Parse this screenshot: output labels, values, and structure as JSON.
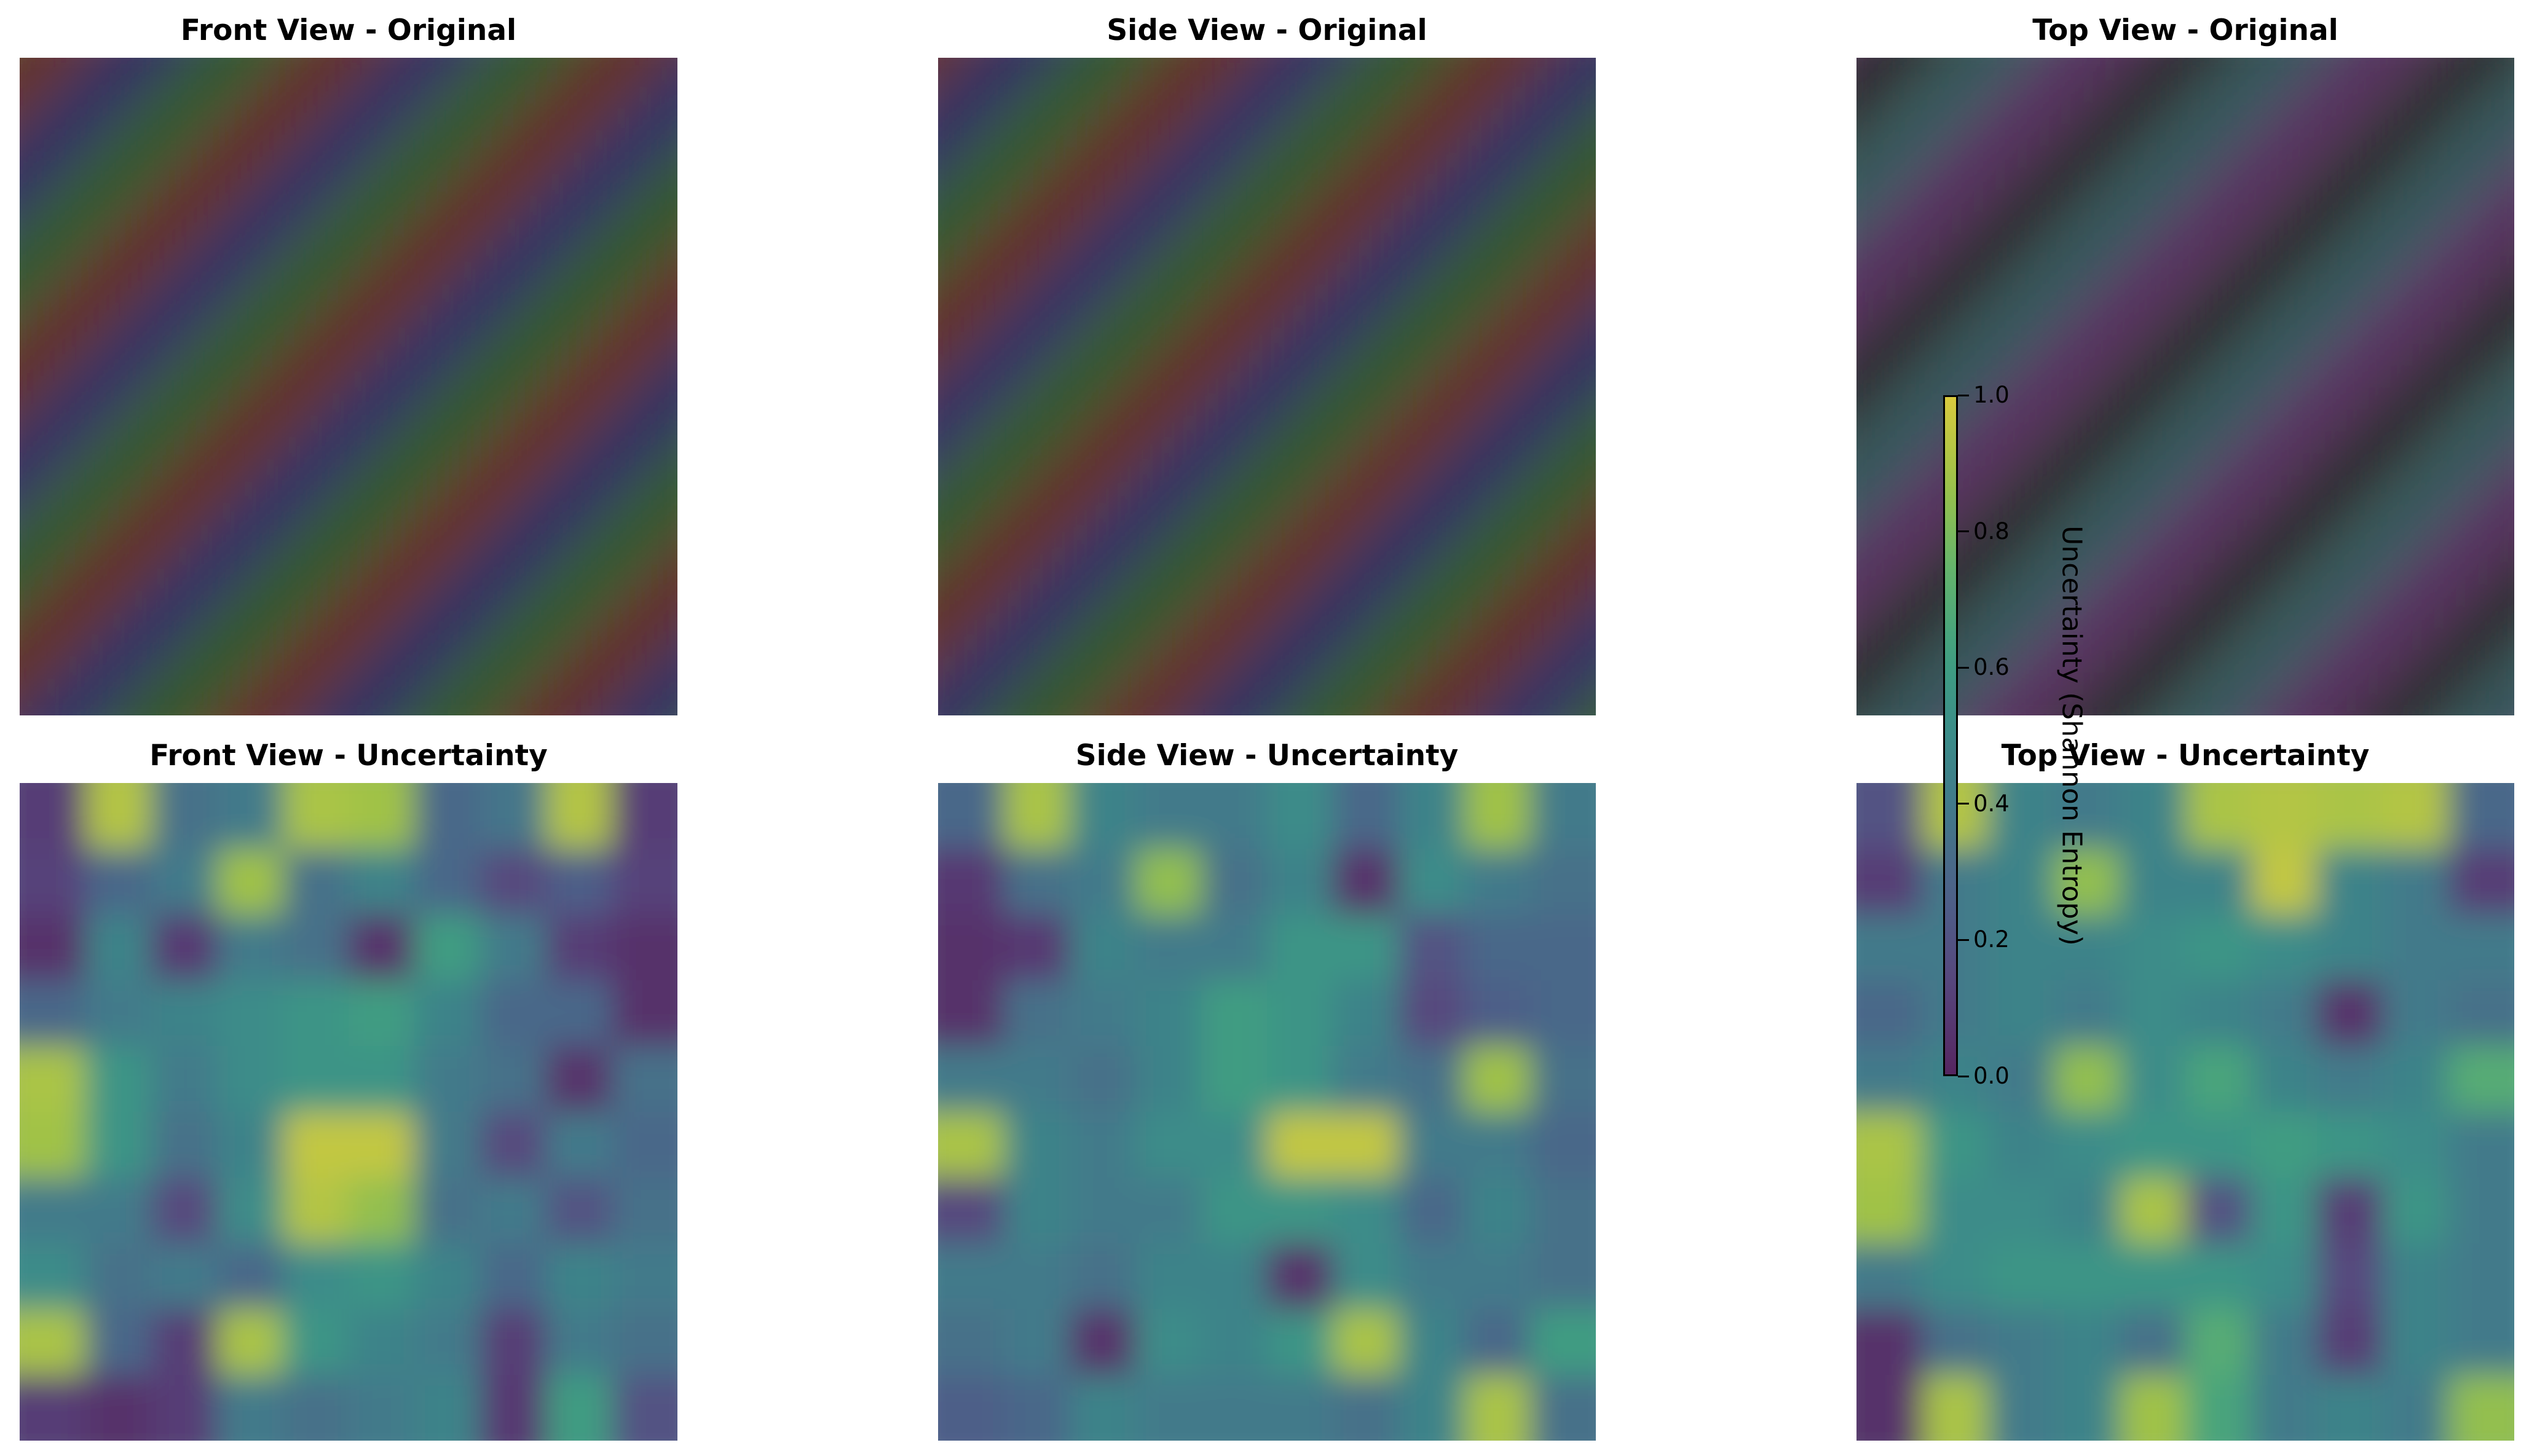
{
  "chart_data": [
    {
      "type": "heatmap",
      "title": "Front View - Original",
      "mode": "rgb",
      "pattern": {
        "kx": 0.9,
        "ky": 0.9,
        "phase": 0.0,
        "channels": [
          "red",
          "blue",
          "green"
        ]
      },
      "grid": false
    },
    {
      "type": "heatmap",
      "title": "Side View - Original",
      "mode": "rgb",
      "pattern": {
        "kx": 0.9,
        "ky": 0.9,
        "phase": 0.9,
        "channels": [
          "red",
          "blue",
          "green"
        ]
      },
      "grid": false
    },
    {
      "type": "heatmap",
      "title": "Top View - Original",
      "mode": "rgb",
      "pattern": {
        "kx": 0.9,
        "ky": 0.9,
        "phase": 1.8,
        "channels": [
          "purple",
          "black",
          "teal"
        ]
      },
      "grid": false
    },
    {
      "type": "heatmap",
      "title": "Front View - Uncertainty",
      "mode": "colormap",
      "colormap": "viridis",
      "range": [
        0.0,
        1.0
      ],
      "grid_size": 10,
      "values": [
        [
          0.1,
          0.92,
          0.35,
          0.4,
          0.9,
          0.88,
          0.3,
          0.38,
          0.92,
          0.1
        ],
        [
          0.12,
          0.3,
          0.4,
          0.88,
          0.35,
          0.45,
          0.3,
          0.15,
          0.25,
          0.12
        ],
        [
          0.05,
          0.45,
          0.08,
          0.4,
          0.35,
          0.05,
          0.6,
          0.4,
          0.1,
          0.05
        ],
        [
          0.3,
          0.4,
          0.45,
          0.5,
          0.55,
          0.6,
          0.45,
          0.3,
          0.3,
          0.05
        ],
        [
          0.9,
          0.55,
          0.4,
          0.5,
          0.55,
          0.55,
          0.4,
          0.35,
          0.05,
          0.35
        ],
        [
          0.88,
          0.55,
          0.35,
          0.45,
          0.95,
          0.95,
          0.4,
          0.15,
          0.4,
          0.3
        ],
        [
          0.4,
          0.4,
          0.15,
          0.5,
          0.92,
          0.85,
          0.35,
          0.4,
          0.2,
          0.35
        ],
        [
          0.5,
          0.35,
          0.4,
          0.3,
          0.5,
          0.55,
          0.45,
          0.3,
          0.45,
          0.4
        ],
        [
          0.9,
          0.3,
          0.1,
          0.9,
          0.55,
          0.45,
          0.4,
          0.1,
          0.4,
          0.35
        ],
        [
          0.1,
          0.05,
          0.1,
          0.4,
          0.35,
          0.4,
          0.45,
          0.08,
          0.6,
          0.2
        ]
      ]
    },
    {
      "type": "heatmap",
      "title": "Side View - Uncertainty",
      "mode": "colormap",
      "colormap": "viridis",
      "range": [
        0.0,
        1.0
      ],
      "grid_size": 10,
      "values": [
        [
          0.3,
          0.9,
          0.45,
          0.4,
          0.4,
          0.5,
          0.3,
          0.45,
          0.88,
          0.4
        ],
        [
          0.08,
          0.35,
          0.4,
          0.85,
          0.35,
          0.45,
          0.05,
          0.5,
          0.4,
          0.35
        ],
        [
          0.05,
          0.08,
          0.45,
          0.4,
          0.4,
          0.55,
          0.55,
          0.2,
          0.3,
          0.3
        ],
        [
          0.05,
          0.35,
          0.4,
          0.45,
          0.6,
          0.55,
          0.45,
          0.15,
          0.25,
          0.3
        ],
        [
          0.4,
          0.4,
          0.35,
          0.45,
          0.6,
          0.55,
          0.4,
          0.35,
          0.88,
          0.35
        ],
        [
          0.9,
          0.45,
          0.4,
          0.5,
          0.5,
          0.95,
          0.95,
          0.4,
          0.4,
          0.3
        ],
        [
          0.15,
          0.45,
          0.4,
          0.4,
          0.55,
          0.55,
          0.5,
          0.3,
          0.45,
          0.35
        ],
        [
          0.4,
          0.4,
          0.35,
          0.45,
          0.45,
          0.05,
          0.5,
          0.4,
          0.4,
          0.35
        ],
        [
          0.35,
          0.4,
          0.05,
          0.5,
          0.45,
          0.55,
          0.9,
          0.45,
          0.3,
          0.6
        ],
        [
          0.25,
          0.3,
          0.45,
          0.4,
          0.4,
          0.4,
          0.35,
          0.45,
          0.9,
          0.35
        ]
      ]
    },
    {
      "type": "heatmap",
      "title": "Top View - Uncertainty",
      "mode": "colormap",
      "colormap": "viridis",
      "range": [
        0.0,
        1.0
      ],
      "grid_size": 10,
      "values": [
        [
          0.2,
          0.92,
          0.45,
          0.4,
          0.45,
          0.9,
          0.92,
          0.9,
          0.92,
          0.3
        ],
        [
          0.1,
          0.4,
          0.45,
          0.85,
          0.45,
          0.45,
          0.95,
          0.45,
          0.4,
          0.1
        ],
        [
          0.4,
          0.4,
          0.45,
          0.45,
          0.5,
          0.55,
          0.5,
          0.45,
          0.4,
          0.4
        ],
        [
          0.3,
          0.4,
          0.45,
          0.4,
          0.5,
          0.45,
          0.4,
          0.05,
          0.4,
          0.35
        ],
        [
          0.4,
          0.45,
          0.4,
          0.85,
          0.5,
          0.65,
          0.45,
          0.4,
          0.45,
          0.7
        ],
        [
          0.9,
          0.55,
          0.45,
          0.5,
          0.55,
          0.55,
          0.6,
          0.55,
          0.5,
          0.4
        ],
        [
          0.88,
          0.5,
          0.5,
          0.45,
          0.9,
          0.2,
          0.55,
          0.1,
          0.55,
          0.4
        ],
        [
          0.4,
          0.5,
          0.55,
          0.55,
          0.55,
          0.55,
          0.5,
          0.15,
          0.45,
          0.4
        ],
        [
          0.05,
          0.35,
          0.4,
          0.45,
          0.35,
          0.7,
          0.4,
          0.1,
          0.45,
          0.4
        ],
        [
          0.05,
          0.9,
          0.4,
          0.45,
          0.88,
          0.65,
          0.4,
          0.45,
          0.4,
          0.85
        ]
      ]
    }
  ],
  "colorbar": {
    "label": "Uncertainty (Shannon Entropy)",
    "colormap": "viridis",
    "range": [
      0.0,
      1.0
    ],
    "ticks": [
      "0.0",
      "0.2",
      "0.4",
      "0.6",
      "0.8",
      "1.0"
    ]
  },
  "colors": {
    "red": "#6e1f17",
    "blue": "#25236f",
    "green": "#205f1c",
    "purple": "#5e2366",
    "black": "#1a1a1c",
    "teal": "#2a5f60",
    "gray": "#6a6a6a",
    "olive": "#625e18"
  }
}
